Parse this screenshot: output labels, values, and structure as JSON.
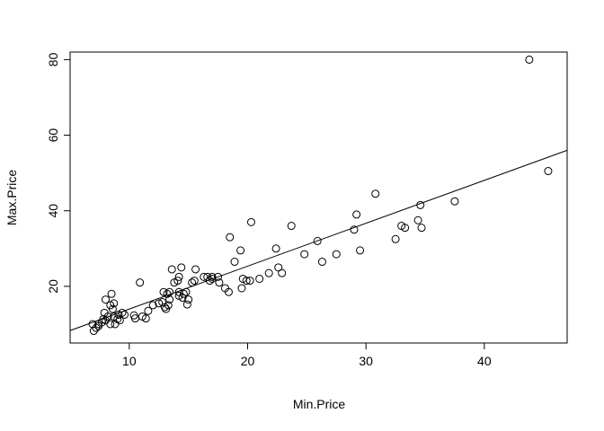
{
  "chart_data": {
    "type": "scatter",
    "title": "",
    "xlabel": "Min.Price",
    "ylabel": "Max.Price",
    "xlim": [
      5,
      47
    ],
    "ylim": [
      5,
      82
    ],
    "xticks": [
      10,
      20,
      30,
      40
    ],
    "yticks": [
      20,
      40,
      60,
      80
    ],
    "grid": false,
    "legend": "none",
    "marker": "open-circle",
    "points": [
      [
        6.9,
        10.0
      ],
      [
        7.0,
        8.2
      ],
      [
        7.2,
        9.0
      ],
      [
        7.4,
        9.5
      ],
      [
        7.4,
        10.0
      ],
      [
        7.7,
        10.5
      ],
      [
        7.8,
        11.3
      ],
      [
        7.9,
        13.0
      ],
      [
        8.0,
        11.0
      ],
      [
        8.0,
        16.5
      ],
      [
        8.2,
        12.0
      ],
      [
        8.4,
        10.0
      ],
      [
        8.4,
        15.0
      ],
      [
        8.5,
        18.0
      ],
      [
        8.6,
        14.0
      ],
      [
        8.7,
        12.0
      ],
      [
        8.7,
        15.5
      ],
      [
        8.8,
        10.0
      ],
      [
        9.0,
        11.3
      ],
      [
        9.1,
        12.5
      ],
      [
        9.2,
        11.0
      ],
      [
        9.4,
        13.0
      ],
      [
        9.6,
        12.5
      ],
      [
        10.4,
        12.3
      ],
      [
        10.5,
        11.5
      ],
      [
        10.9,
        21.0
      ],
      [
        11.1,
        12.0
      ],
      [
        11.4,
        11.5
      ],
      [
        11.6,
        13.5
      ],
      [
        12.0,
        15.0
      ],
      [
        12.5,
        15.5
      ],
      [
        12.8,
        15.8
      ],
      [
        12.9,
        18.5
      ],
      [
        13.0,
        14.5
      ],
      [
        13.1,
        14.0
      ],
      [
        13.2,
        18.0
      ],
      [
        13.3,
        15.0
      ],
      [
        13.4,
        16.5
      ],
      [
        13.4,
        18.5
      ],
      [
        13.6,
        24.5
      ],
      [
        13.8,
        21.0
      ],
      [
        14.1,
        21.5
      ],
      [
        14.2,
        18.5
      ],
      [
        14.2,
        17.5
      ],
      [
        14.2,
        22.5
      ],
      [
        14.4,
        25.0
      ],
      [
        14.5,
        17.0
      ],
      [
        14.6,
        18.0
      ],
      [
        14.8,
        18.5
      ],
      [
        14.9,
        15.2
      ],
      [
        15.0,
        16.5
      ],
      [
        15.3,
        21.0
      ],
      [
        15.5,
        21.5
      ],
      [
        15.6,
        24.5
      ],
      [
        16.3,
        22.5
      ],
      [
        16.6,
        22.5
      ],
      [
        16.8,
        21.5
      ],
      [
        17.0,
        22.5
      ],
      [
        17.0,
        22.0
      ],
      [
        17.5,
        22.5
      ],
      [
        17.6,
        21.0
      ],
      [
        18.1,
        19.5
      ],
      [
        18.4,
        18.5
      ],
      [
        18.5,
        33.0
      ],
      [
        18.9,
        26.5
      ],
      [
        19.4,
        29.5
      ],
      [
        19.5,
        19.5
      ],
      [
        19.6,
        22.0
      ],
      [
        19.9,
        21.5
      ],
      [
        20.2,
        21.5
      ],
      [
        20.3,
        37.0
      ],
      [
        21.0,
        22.0
      ],
      [
        21.8,
        23.5
      ],
      [
        22.4,
        30.0
      ],
      [
        22.6,
        25.0
      ],
      [
        22.9,
        23.5
      ],
      [
        23.7,
        36.0
      ],
      [
        24.8,
        28.5
      ],
      [
        25.9,
        32.0
      ],
      [
        26.3,
        26.5
      ],
      [
        27.5,
        28.5
      ],
      [
        29.0,
        35.0
      ],
      [
        29.2,
        39.0
      ],
      [
        29.5,
        29.5
      ],
      [
        30.8,
        44.5
      ],
      [
        32.5,
        32.5
      ],
      [
        33.0,
        36.0
      ],
      [
        33.3,
        35.5
      ],
      [
        34.4,
        37.5
      ],
      [
        34.6,
        41.5
      ],
      [
        34.7,
        35.5
      ],
      [
        37.5,
        42.5
      ],
      [
        43.8,
        80.0
      ],
      [
        45.4,
        50.5
      ]
    ],
    "fit_line": {
      "x": [
        5,
        47
      ],
      "y": [
        8.3,
        56.0
      ]
    }
  }
}
